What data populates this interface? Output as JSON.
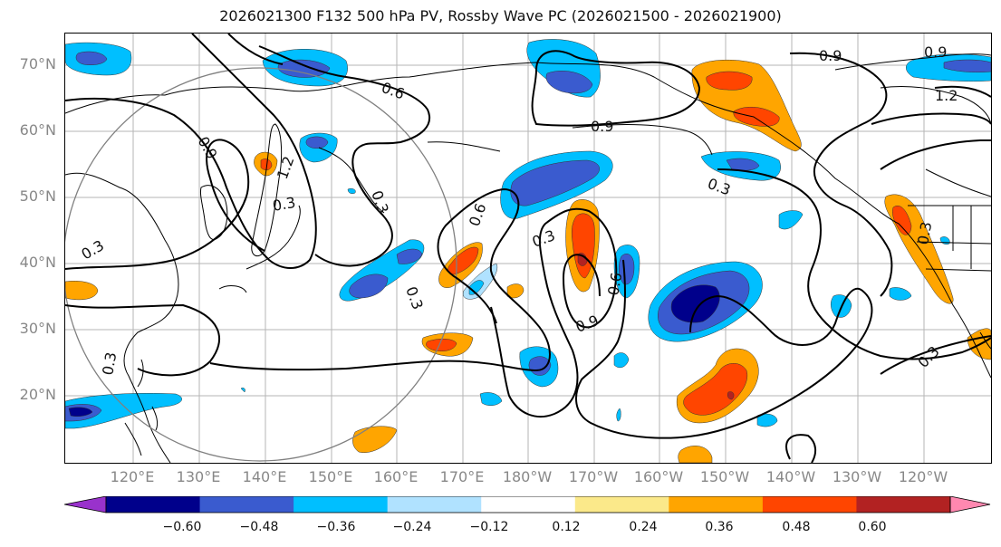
{
  "title": "2026021300 F132 500 hPa PV, Rossby Wave PC (2026021500 - 2026021900)",
  "lat_labels": [
    "70°N",
    "60°N",
    "50°N",
    "40°N",
    "30°N",
    "20°N"
  ],
  "lon_labels": [
    "120°E",
    "130°E",
    "140°E",
    "150°E",
    "160°E",
    "170°E",
    "180°W",
    "170°W",
    "160°W",
    "150°W",
    "140°W",
    "130°W",
    "120°W"
  ],
  "contour_labels": [
    "0.9",
    "0.6",
    "0.9",
    "0.9",
    "1.2",
    "0.9",
    "1.2",
    "0.3",
    "0.3",
    "0.3",
    "0.6",
    "0.3",
    "0.3",
    "0.6",
    "0.9",
    "0.3",
    "0.3",
    "0.3",
    "0.3"
  ],
  "colorbar": {
    "ticks": [
      "−0.60",
      "−0.48",
      "−0.36",
      "−0.24",
      "−0.12",
      "0.12",
      "0.24",
      "0.36",
      "0.48",
      "0.60"
    ],
    "colors": [
      "#9932cc",
      "#00008b",
      "#3a5bcf",
      "#00bfff",
      "#b0e2ff",
      "#ffffff",
      "#fbe98a",
      "#ffa500",
      "#ff4500",
      "#b22222",
      "#ff88b0"
    ]
  }
}
